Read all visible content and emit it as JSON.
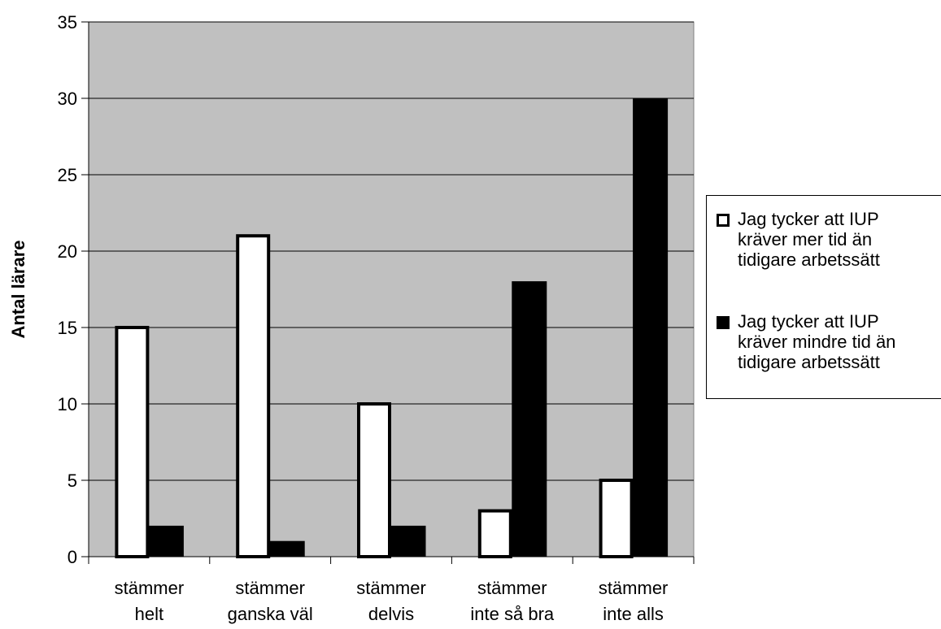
{
  "chart_data": {
    "type": "bar",
    "categories": [
      "stämmer helt",
      "stämmer ganska väl",
      "stämmer delvis",
      "stämmer inte så bra",
      "stämmer inte alls"
    ],
    "category_lines": [
      [
        "stämmer",
        "helt"
      ],
      [
        "stämmer",
        "ganska väl"
      ],
      [
        "stämmer",
        "delvis"
      ],
      [
        "stämmer",
        "inte så bra"
      ],
      [
        "stämmer",
        "inte alls"
      ]
    ],
    "series": [
      {
        "name": "Jag tycker att IUP kräver mer tid än tidigare arbetssätt",
        "name_lines": "Jag tycker att IUP\nkräver mer tid än\ntidigare arbetssätt",
        "values": [
          15,
          21,
          10,
          3,
          5
        ],
        "color": "#ffffff"
      },
      {
        "name": "Jag tycker att IUP kräver mindre tid än tidigare arbetssätt",
        "name_lines": "Jag tycker att IUP\nkräver mindre tid än\ntidigare arbetssätt",
        "values": [
          2,
          1,
          2,
          18,
          30
        ],
        "color": "#000000"
      }
    ],
    "ylabel": "Antal lärare",
    "ylim": [
      0,
      35
    ],
    "yticks": [
      "0",
      "5",
      "10",
      "15",
      "20",
      "25",
      "30",
      "35"
    ],
    "grid": true,
    "plot_background": "#c0c0c0",
    "legend_position": "right"
  }
}
